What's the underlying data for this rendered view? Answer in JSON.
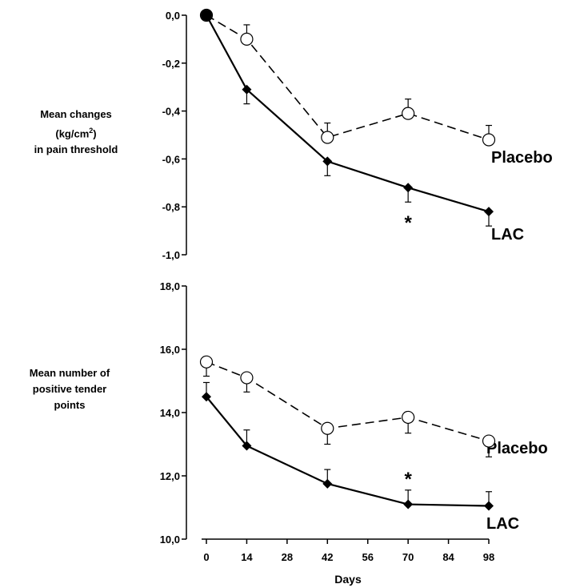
{
  "chart_data": [
    {
      "type": "line",
      "ylabel_lines": [
        "Mean changes",
        "(kg/cm²)",
        "in pain threshold"
      ],
      "ylim": [
        -1.0,
        0.0
      ],
      "yticks": [
        0.0,
        -0.2,
        -0.4,
        -0.6,
        -0.8,
        -1.0
      ],
      "ytick_labels": [
        "0,0",
        "-0,2",
        "-0,4",
        "-0,6",
        "-0,8",
        "-1,0"
      ],
      "x": [
        0,
        14,
        42,
        70,
        98
      ],
      "series": [
        {
          "name": "Placebo",
          "style": "dashed",
          "marker": "open-circle",
          "values": [
            0.0,
            -0.1,
            -0.51,
            -0.41,
            -0.52
          ],
          "error_up": [
            0.0,
            0.06,
            0.06,
            0.06,
            0.06
          ]
        },
        {
          "name": "LAC",
          "style": "solid",
          "marker": "filled-diamond",
          "values": [
            0.0,
            -0.31,
            -0.61,
            -0.72,
            -0.82
          ],
          "error_down": [
            0.0,
            0.06,
            0.06,
            0.06,
            0.06
          ]
        }
      ],
      "annotations": [
        {
          "text": "*",
          "x": 70,
          "y": -0.86
        }
      ]
    },
    {
      "type": "line",
      "ylabel_lines": [
        "Mean number of",
        "positive tender",
        "points"
      ],
      "ylim": [
        10.0,
        18.0
      ],
      "yticks": [
        10.0,
        12.0,
        14.0,
        16.0,
        18.0
      ],
      "ytick_labels": [
        "10,0",
        "12,0",
        "14,0",
        "16,0",
        "18,0"
      ],
      "x": [
        0,
        14,
        42,
        70,
        98
      ],
      "xticks": [
        0,
        14,
        28,
        42,
        56,
        70,
        84,
        98
      ],
      "xtick_labels": [
        "0",
        "14",
        "28",
        "42",
        "56",
        "70",
        "84",
        "98"
      ],
      "xlabel": "Days",
      "series": [
        {
          "name": "Placebo",
          "style": "dashed",
          "marker": "open-circle",
          "values": [
            15.6,
            15.1,
            13.5,
            13.85,
            13.1
          ],
          "error_down": [
            0.45,
            0.45,
            0.5,
            0.5,
            0.5
          ]
        },
        {
          "name": "LAC",
          "style": "solid",
          "marker": "filled-diamond",
          "values": [
            14.5,
            12.95,
            11.75,
            11.1,
            11.05
          ],
          "error_up": [
            0.45,
            0.5,
            0.45,
            0.45,
            0.45
          ]
        }
      ],
      "annotations": [
        {
          "text": "*",
          "x": 70,
          "y": 11.95
        }
      ]
    }
  ]
}
